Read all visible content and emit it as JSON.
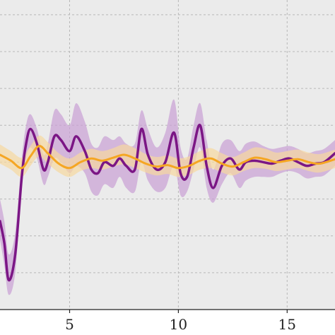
{
  "chart_data": {
    "type": "line",
    "title": "",
    "xlabel": "",
    "ylabel": "",
    "xlim": [
      1.8,
      17.2
    ],
    "ylim": [
      -1.5,
      2.7
    ],
    "grid": true,
    "legend": "none",
    "x_ticks": [
      {
        "value": 5,
        "label": "5"
      },
      {
        "value": 10,
        "label": "10"
      },
      {
        "value": 15,
        "label": "15"
      }
    ],
    "y_gridlines": [
      -1.0,
      -0.5,
      0.0,
      0.5,
      1.0,
      1.5,
      2.0,
      2.5
    ],
    "series": [
      {
        "color": "#7b1685",
        "band_color": "#c9a0d4",
        "x": [
          1.8,
          2.0,
          2.2,
          2.5,
          2.8,
          3.0,
          3.2,
          3.5,
          3.8,
          4.0,
          4.3,
          4.6,
          5.0,
          5.3,
          5.7,
          6.0,
          6.3,
          6.6,
          7.0,
          7.3,
          7.6,
          8.0,
          8.3,
          8.6,
          9.0,
          9.4,
          9.8,
          10.1,
          10.4,
          10.7,
          11.0,
          11.3,
          11.6,
          12.0,
          12.4,
          12.8,
          13.1,
          13.5,
          13.9,
          14.3,
          14.7,
          15.1,
          15.5,
          15.9,
          16.3,
          16.7,
          17.2
        ],
        "y": [
          -0.3,
          -0.6,
          -1.1,
          -0.75,
          0.3,
          0.75,
          0.95,
          0.75,
          0.4,
          0.5,
          0.85,
          0.8,
          0.65,
          0.85,
          0.65,
          0.4,
          0.35,
          0.5,
          0.45,
          0.55,
          0.45,
          0.4,
          0.95,
          0.6,
          0.4,
          0.5,
          0.9,
          0.35,
          0.3,
          0.7,
          1.0,
          0.45,
          0.15,
          0.45,
          0.55,
          0.4,
          0.5,
          0.52,
          0.5,
          0.48,
          0.52,
          0.55,
          0.5,
          0.45,
          0.48,
          0.5,
          0.62
        ],
        "lower": [
          -0.55,
          -0.9,
          -1.3,
          -1.0,
          0.15,
          0.55,
          0.7,
          0.55,
          0.2,
          0.3,
          0.55,
          0.5,
          0.35,
          0.45,
          0.35,
          0.1,
          0.05,
          0.2,
          0.15,
          0.3,
          0.15,
          0.1,
          0.5,
          0.25,
          0.1,
          0.15,
          0.45,
          0.05,
          0.1,
          0.4,
          0.7,
          0.15,
          -0.05,
          0.2,
          0.35,
          0.15,
          0.25,
          0.3,
          0.3,
          0.3,
          0.35,
          0.38,
          0.35,
          0.28,
          0.3,
          0.32,
          0.45
        ],
        "upper": [
          0.0,
          -0.3,
          -0.75,
          -0.45,
          0.55,
          1.0,
          1.15,
          0.95,
          0.6,
          0.75,
          1.2,
          1.15,
          1.0,
          1.3,
          1.05,
          0.75,
          0.7,
          0.85,
          0.8,
          0.85,
          0.75,
          0.75,
          1.2,
          0.95,
          0.7,
          0.9,
          1.35,
          0.7,
          0.55,
          1.0,
          1.3,
          0.8,
          0.4,
          0.75,
          0.8,
          0.65,
          0.75,
          0.78,
          0.72,
          0.68,
          0.7,
          0.72,
          0.68,
          0.62,
          0.65,
          0.68,
          0.8
        ]
      },
      {
        "color": "#f5a623",
        "band_color": "#f7d9a0",
        "x": [
          1.8,
          2.3,
          2.8,
          3.2,
          3.6,
          4.0,
          4.5,
          5.0,
          5.5,
          6.0,
          6.5,
          7.0,
          7.5,
          8.0,
          8.5,
          9.0,
          9.5,
          10.0,
          10.5,
          11.0,
          11.5,
          12.0,
          12.5,
          13.0,
          13.5,
          14.0,
          14.5,
          15.0,
          15.5,
          16.0,
          16.5,
          17.2
        ],
        "y": [
          0.6,
          0.52,
          0.42,
          0.58,
          0.72,
          0.62,
          0.48,
          0.42,
          0.5,
          0.55,
          0.52,
          0.56,
          0.6,
          0.55,
          0.48,
          0.44,
          0.46,
          0.42,
          0.45,
          0.52,
          0.55,
          0.48,
          0.44,
          0.5,
          0.56,
          0.54,
          0.5,
          0.52,
          0.54,
          0.5,
          0.48,
          0.54
        ],
        "lower": [
          0.48,
          0.4,
          0.3,
          0.45,
          0.58,
          0.48,
          0.36,
          0.3,
          0.38,
          0.42,
          0.4,
          0.44,
          0.47,
          0.42,
          0.36,
          0.32,
          0.34,
          0.3,
          0.33,
          0.4,
          0.42,
          0.36,
          0.32,
          0.38,
          0.42,
          0.41,
          0.38,
          0.4,
          0.42,
          0.38,
          0.36,
          0.42
        ],
        "upper": [
          0.74,
          0.65,
          0.56,
          0.72,
          0.86,
          0.77,
          0.62,
          0.55,
          0.63,
          0.68,
          0.65,
          0.69,
          0.74,
          0.69,
          0.61,
          0.57,
          0.59,
          0.55,
          0.58,
          0.65,
          0.69,
          0.62,
          0.57,
          0.63,
          0.7,
          0.68,
          0.63,
          0.65,
          0.67,
          0.63,
          0.61,
          0.67
        ]
      }
    ]
  }
}
